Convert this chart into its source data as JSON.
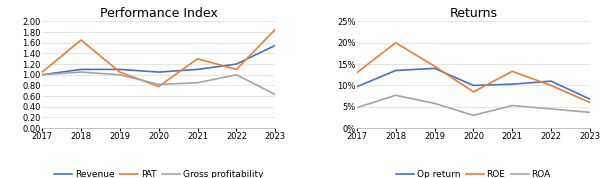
{
  "years": [
    2017,
    2018,
    2019,
    2020,
    2021,
    2022,
    2023
  ],
  "left": {
    "title": "Performance Index",
    "revenue": [
      1.0,
      1.1,
      1.1,
      1.05,
      1.1,
      1.2,
      1.55
    ],
    "pat": [
      1.05,
      1.65,
      1.05,
      0.78,
      1.3,
      1.1,
      1.85
    ],
    "gross_profitability": [
      1.0,
      1.05,
      1.0,
      0.82,
      0.85,
      1.0,
      0.63
    ],
    "ylim": [
      0.0,
      2.0
    ],
    "yticks": [
      0.0,
      0.2,
      0.4,
      0.6,
      0.8,
      1.0,
      1.2,
      1.4,
      1.6,
      1.8,
      2.0
    ],
    "colors": {
      "revenue": "#4472c4",
      "pat": "#ed7d31",
      "gross_profitability": "#a5a5a5"
    },
    "legend": [
      "Revenue",
      "PAT",
      "Gross profitability"
    ]
  },
  "right": {
    "title": "Returns",
    "op_return": [
      0.097,
      0.135,
      0.14,
      0.1,
      0.103,
      0.11,
      0.068
    ],
    "roe": [
      0.13,
      0.2,
      0.145,
      0.085,
      0.133,
      0.1,
      0.06
    ],
    "roa": [
      0.048,
      0.077,
      0.058,
      0.03,
      0.053,
      0.045,
      0.037
    ],
    "ylim": [
      0.0,
      0.25
    ],
    "yticks": [
      0.0,
      0.05,
      0.1,
      0.15,
      0.2,
      0.25
    ],
    "colors": {
      "op_return": "#4472c4",
      "roe": "#ed7d31",
      "roa": "#a5a5a5"
    },
    "legend": [
      "Op return",
      "ROE",
      "ROA"
    ]
  },
  "background": "#ffffff",
  "title_fontsize": 9,
  "tick_fontsize": 6,
  "legend_fontsize": 6.5,
  "linewidth": 1.2
}
